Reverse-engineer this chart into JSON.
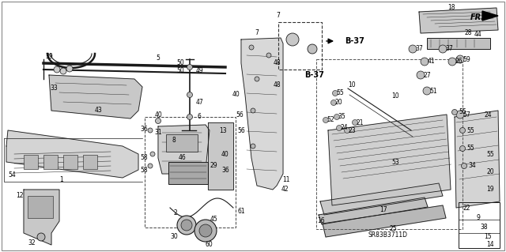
{
  "bg_color": "#ffffff",
  "line_color": "#1a1a1a",
  "text_color": "#000000",
  "catalog_number": "SR83B3711D",
  "b37_label": "B-37",
  "fr_label": "FR.",
  "font_size": 5.5,
  "lw": 0.6,
  "fig_w": 6.4,
  "fig_h": 3.19,
  "dpi": 100
}
